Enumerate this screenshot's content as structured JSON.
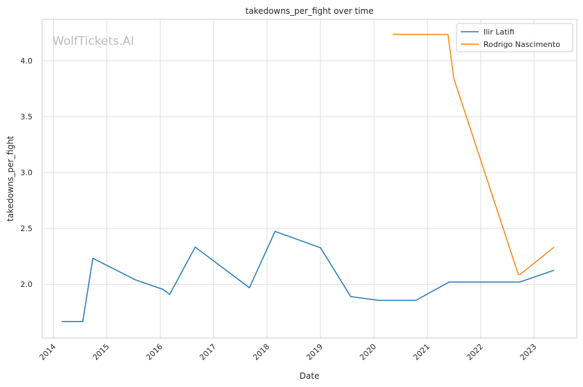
{
  "watermark": "WolfTickets.AI",
  "chart_data": {
    "type": "line",
    "title": "takedowns_per_fight over time",
    "xlabel": "Date",
    "ylabel": "takedowns_per_fight",
    "x_ticks": [
      "2014",
      "2015",
      "2016",
      "2017",
      "2018",
      "2019",
      "2020",
      "2021",
      "2022",
      "2023"
    ],
    "y_ticks": [
      "2.0",
      "2.5",
      "3.0",
      "3.5",
      "4.0"
    ],
    "xlim": [
      "2013-10-15",
      "2023-10-20"
    ],
    "ylim": [
      1.52,
      4.37
    ],
    "grid": true,
    "legend_position": "top-right",
    "series": [
      {
        "name": "Ilir Latifi",
        "color": "#1f77b4",
        "points": [
          [
            "2014-03-01",
            1.667
          ],
          [
            "2014-07-20",
            1.667
          ],
          [
            "2014-09-27",
            2.233
          ],
          [
            "2015-07-15",
            2.04
          ],
          [
            "2016-01-20",
            1.955
          ],
          [
            "2016-03-05",
            1.91
          ],
          [
            "2016-08-27",
            2.333
          ],
          [
            "2017-09-02",
            1.97
          ],
          [
            "2018-02-24",
            2.474
          ],
          [
            "2019-01-01",
            2.327
          ],
          [
            "2019-07-27",
            1.89
          ],
          [
            "2020-02-01",
            1.857
          ],
          [
            "2020-10-15",
            1.857
          ],
          [
            "2021-05-29",
            2.02
          ],
          [
            "2022-09-24",
            2.02
          ],
          [
            "2023-05-15",
            2.125
          ]
        ]
      },
      {
        "name": "Rodrigo Nascimento",
        "color": "#ff7f0e",
        "points": [
          [
            "2020-05-13",
            4.235
          ],
          [
            "2021-05-22",
            4.235
          ],
          [
            "2021-07-01",
            3.84
          ],
          [
            "2022-09-15",
            2.09
          ],
          [
            "2022-09-29",
            2.09
          ],
          [
            "2023-05-15",
            2.33
          ]
        ]
      }
    ]
  }
}
